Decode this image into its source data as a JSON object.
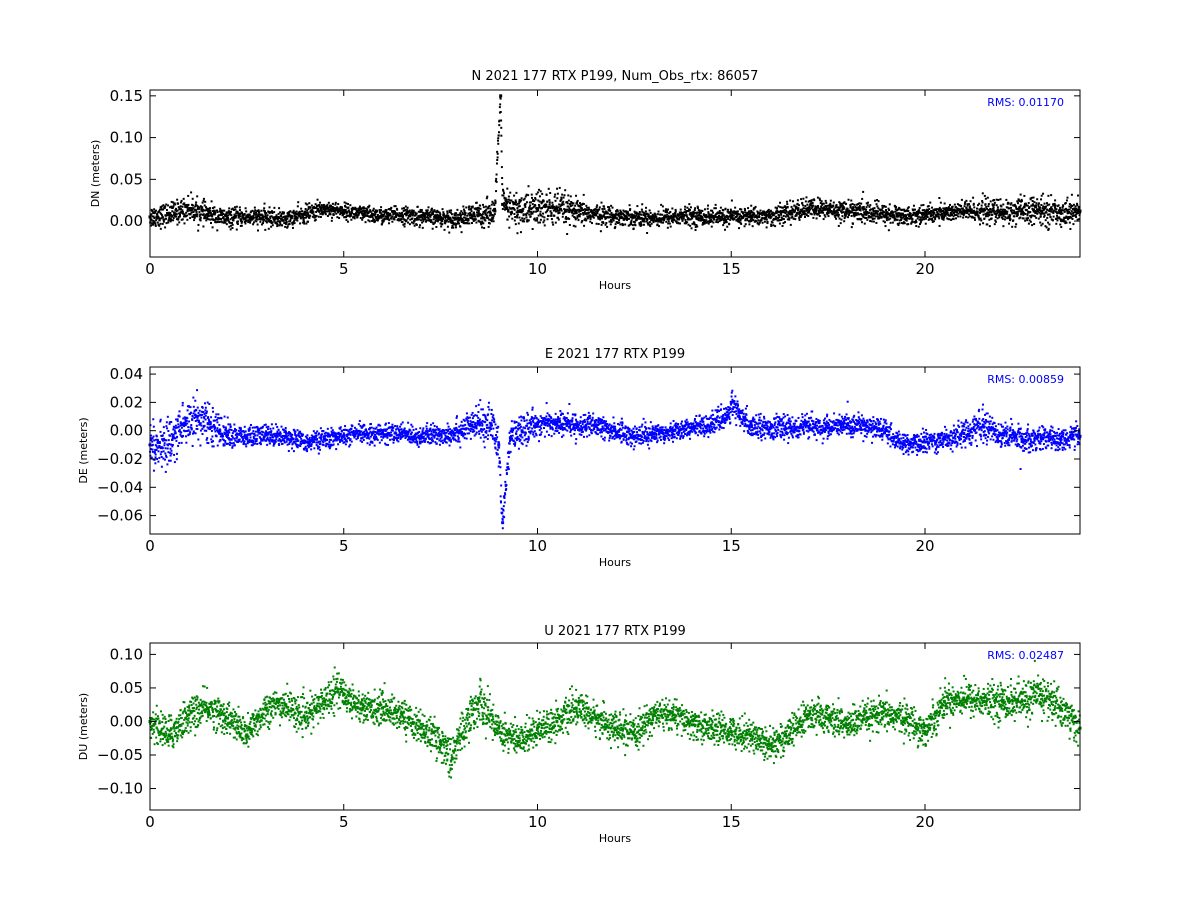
{
  "chart_data": [
    {
      "type": "scatter",
      "title": "N 2021 177 RTX  P199, Num_Obs_rtx: 86057",
      "xlabel": "Hours",
      "ylabel": "DN (meters)",
      "xlim": [
        0,
        24
      ],
      "ylim": [
        -0.043,
        0.157
      ],
      "xticks": [
        0,
        5,
        10,
        15,
        20
      ],
      "yticks": [
        0.0,
        0.05,
        0.1,
        0.15
      ],
      "ytick_labels": [
        "0.00",
        "0.05",
        "0.10",
        "0.15"
      ],
      "annotation": "RMS:  0.01170",
      "color": "#000000",
      "series": [
        {
          "x": [
            0,
            0.5,
            1,
            1.5,
            2,
            2.5,
            3,
            3.5,
            4,
            4.5,
            5,
            5.5,
            6,
            6.5,
            7,
            7.5,
            8,
            8.5,
            8.9,
            9.05,
            9.1,
            9.2,
            9.5,
            10,
            10.5,
            11,
            11.5,
            12,
            12.5,
            13,
            13.5,
            14,
            14.5,
            15,
            15.5,
            16,
            16.5,
            17,
            17.5,
            18,
            18.5,
            19,
            19.5,
            20,
            20.5,
            21,
            21.5,
            22,
            22.5,
            23,
            23.5,
            24
          ],
          "y": [
            0.005,
            0.008,
            0.015,
            0.008,
            0.003,
            0.005,
            0.004,
            0.002,
            0.008,
            0.015,
            0.012,
            0.008,
            0.006,
            0.007,
            0.005,
            0.004,
            0.003,
            0.008,
            0.012,
            0.15,
            0.02,
            0.015,
            0.012,
            0.015,
            0.015,
            0.01,
            0.008,
            0.006,
            0.005,
            0.004,
            0.005,
            0.006,
            0.005,
            0.005,
            0.006,
            0.005,
            0.01,
            0.015,
            0.014,
            0.012,
            0.01,
            0.008,
            0.006,
            0.008,
            0.01,
            0.012,
            0.012,
            0.01,
            0.012,
            0.012,
            0.01,
            0.012
          ],
          "spread": [
            0.012,
            0.012,
            0.013,
            0.011,
            0.01,
            0.01,
            0.01,
            0.009,
            0.01,
            0.009,
            0.008,
            0.009,
            0.009,
            0.009,
            0.01,
            0.009,
            0.01,
            0.014,
            0.013,
            0.01,
            0.018,
            0.02,
            0.02,
            0.021,
            0.02,
            0.014,
            0.011,
            0.01,
            0.01,
            0.01,
            0.01,
            0.01,
            0.01,
            0.01,
            0.01,
            0.01,
            0.011,
            0.011,
            0.011,
            0.011,
            0.012,
            0.011,
            0.01,
            0.01,
            0.01,
            0.011,
            0.013,
            0.014,
            0.014,
            0.015,
            0.014,
            0.013
          ]
        }
      ]
    },
    {
      "type": "scatter",
      "title": "E 2021 177 RTX  P199",
      "xlabel": "Hours",
      "ylabel": "DE (meters)",
      "xlim": [
        0,
        24
      ],
      "ylim": [
        -0.073,
        0.045
      ],
      "xticks": [
        0,
        5,
        10,
        15,
        20
      ],
      "yticks": [
        -0.06,
        -0.04,
        -0.02,
        0.0,
        0.02,
        0.04
      ],
      "ytick_labels": [
        "−0.06",
        "−0.04",
        "−0.02",
        "0.00",
        "0.02",
        "0.04"
      ],
      "annotation": "RMS:  0.00859",
      "color": "#0000ff",
      "series": [
        {
          "x": [
            0,
            0.3,
            0.6,
            0.9,
            1.2,
            1.5,
            1.8,
            2,
            2.5,
            3,
            3.5,
            4,
            4.5,
            5,
            5.5,
            6,
            6.5,
            7,
            7.5,
            8,
            8.5,
            8.8,
            9,
            9.1,
            9.3,
            9.6,
            10,
            10.5,
            11,
            11.5,
            12,
            12.5,
            13,
            13.5,
            14,
            14.5,
            14.9,
            15,
            15.2,
            15.5,
            16,
            16.5,
            17,
            17.5,
            18,
            18.5,
            19,
            19.3,
            19.6,
            20,
            20.5,
            21,
            21.5,
            22,
            22.5,
            23,
            23.5,
            24
          ],
          "y": [
            -0.01,
            -0.012,
            -0.005,
            0.005,
            0.01,
            0.005,
            0,
            -0.003,
            -0.005,
            -0.003,
            -0.004,
            -0.008,
            -0.006,
            -0.004,
            -0.002,
            -0.002,
            -0.002,
            -0.004,
            -0.003,
            0,
            0.005,
            0.005,
            -0.01,
            -0.065,
            -0.005,
            0,
            0.005,
            0.005,
            0.004,
            0.003,
            0,
            -0.004,
            -0.002,
            0,
            0.002,
            0.005,
            0.01,
            0.02,
            0.01,
            0.004,
            0.002,
            0.002,
            0.003,
            0.002,
            0.004,
            0.003,
            0,
            -0.008,
            -0.01,
            -0.008,
            -0.006,
            -0.002,
            0.004,
            -0.003,
            -0.006,
            -0.005,
            -0.006,
            -0.004
          ],
          "spread": [
            0.013,
            0.013,
            0.016,
            0.015,
            0.014,
            0.012,
            0.01,
            0.008,
            0.007,
            0.007,
            0.006,
            0.006,
            0.006,
            0.006,
            0.006,
            0.006,
            0.006,
            0.006,
            0.007,
            0.008,
            0.01,
            0.012,
            0.015,
            0.008,
            0.01,
            0.009,
            0.008,
            0.008,
            0.007,
            0.007,
            0.007,
            0.007,
            0.006,
            0.006,
            0.006,
            0.006,
            0.008,
            0.01,
            0.008,
            0.007,
            0.007,
            0.007,
            0.007,
            0.007,
            0.007,
            0.007,
            0.007,
            0.006,
            0.006,
            0.007,
            0.007,
            0.008,
            0.009,
            0.009,
            0.008,
            0.007,
            0.007,
            0.007
          ]
        }
      ]
    },
    {
      "type": "scatter",
      "title": "U 2021 177 RTX  P199",
      "xlabel": "Hours",
      "ylabel": "DU (meters)",
      "xlim": [
        0,
        24
      ],
      "ylim": [
        -0.132,
        0.117
      ],
      "xticks": [
        0,
        5,
        10,
        15,
        20
      ],
      "yticks": [
        -0.1,
        -0.05,
        0.0,
        0.05,
        0.1
      ],
      "ytick_labels": [
        "−0.10",
        "−0.05",
        "0.00",
        "0.05",
        "0.10"
      ],
      "annotation": "RMS:  0.02487",
      "color": "#008000",
      "series": [
        {
          "x": [
            0,
            0.5,
            1,
            1.5,
            2,
            2.5,
            3,
            3.5,
            4,
            4.5,
            4.8,
            5,
            5.5,
            6,
            6.5,
            7,
            7.5,
            7.8,
            8,
            8.5,
            9,
            9.5,
            10,
            10.5,
            11,
            11.5,
            12,
            12.5,
            13,
            13.5,
            14,
            14.5,
            15,
            15.5,
            16,
            16.5,
            17,
            17.5,
            18,
            18.5,
            19,
            19.5,
            20,
            20.5,
            21,
            21.5,
            22,
            22.5,
            23,
            23.5,
            24
          ],
          "y": [
            0,
            -0.02,
            0.01,
            0.02,
            0.005,
            -0.02,
            0.02,
            0.025,
            0.005,
            0.03,
            0.05,
            0.04,
            0.02,
            0.02,
            0.01,
            -0.01,
            -0.03,
            -0.055,
            -0.02,
            0.03,
            -0.01,
            -0.03,
            -0.01,
            0,
            0.02,
            0.005,
            -0.01,
            -0.02,
            0.01,
            0.01,
            -0.005,
            -0.01,
            -0.015,
            -0.02,
            -0.035,
            -0.02,
            0.01,
            0.005,
            -0.005,
            0.005,
            0.01,
            0.005,
            -0.015,
            0.03,
            0.035,
            0.03,
            0.03,
            0.03,
            0.04,
            0.02,
            -0.01
          ],
          "spread": [
            0.024,
            0.024,
            0.024,
            0.022,
            0.022,
            0.022,
            0.022,
            0.022,
            0.021,
            0.022,
            0.024,
            0.022,
            0.021,
            0.021,
            0.021,
            0.021,
            0.024,
            0.028,
            0.026,
            0.028,
            0.024,
            0.022,
            0.021,
            0.021,
            0.021,
            0.021,
            0.021,
            0.021,
            0.02,
            0.02,
            0.02,
            0.02,
            0.02,
            0.021,
            0.024,
            0.022,
            0.021,
            0.021,
            0.021,
            0.021,
            0.021,
            0.021,
            0.022,
            0.022,
            0.022,
            0.022,
            0.024,
            0.026,
            0.028,
            0.026,
            0.024
          ]
        }
      ]
    }
  ]
}
